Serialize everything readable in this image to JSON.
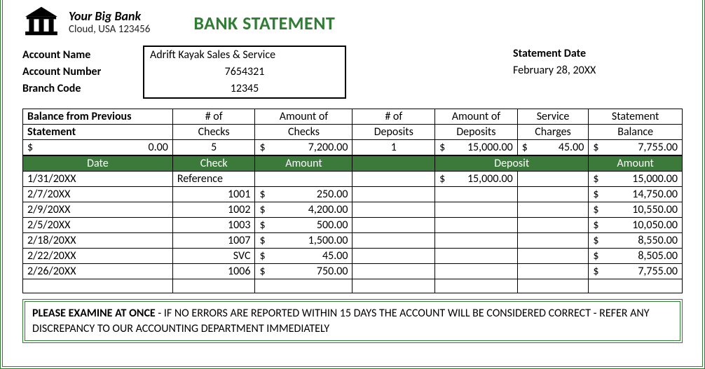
{
  "bank": {
    "name": "Your Big Bank",
    "location": "Cloud, USA 123456"
  },
  "title": "BANK STATEMENT",
  "account": {
    "name_label": "Account Name",
    "number_label": "Account Number",
    "branch_label": "Branch Code",
    "name": "Adrift Kayak Sales & Service",
    "number": "7654321",
    "branch": "12345",
    "stmt_date_label": "Statement Date",
    "stmt_date": "February 28, 20XX"
  },
  "summary": {
    "headers": {
      "bfps_l1": "Balance from Previous",
      "bfps_l2": "Statement",
      "nchecks_l1": "# of",
      "nchecks_l2": "Checks",
      "amtchk_l1": "Amount of",
      "amtchk_l2": "Checks",
      "ndep_l1": "# of",
      "ndep_l2": "Deposits",
      "amtdep_l1": "Amount of",
      "amtdep_l2": "Deposits",
      "svc_l1": "Service",
      "svc_l2": "Charges",
      "bal_l1": "Statement",
      "bal_l2": "Balance"
    },
    "values": {
      "bfps_cur": "$",
      "bfps": "0.00",
      "nchecks": "5",
      "amtchk_cur": "$",
      "amtchk": "7,200.00",
      "ndep": "1",
      "amtdep_cur": "$",
      "amtdep": "15,000.00",
      "svc_cur": "$",
      "svc": "45.00",
      "bal_cur": "$",
      "bal": "7,755.00"
    }
  },
  "txn": {
    "headers": {
      "date": "Date",
      "check": "Check",
      "amount": "Amount",
      "deposit": "Deposit",
      "balance": "Amount"
    },
    "rows": [
      {
        "date": "1/31/20XX",
        "check": "Reference",
        "check_align": "left",
        "amt_cur": "",
        "amt": "",
        "dep_cur": "$",
        "dep": "15,000.00",
        "bal_cur": "$",
        "bal": "15,000.00"
      },
      {
        "date": "2/7/20XX",
        "check": "1001",
        "check_align": "right",
        "amt_cur": "$",
        "amt": "250.00",
        "dep_cur": "",
        "dep": "",
        "bal_cur": "$",
        "bal": "14,750.00"
      },
      {
        "date": "2/9/20XX",
        "check": "1002",
        "check_align": "right",
        "amt_cur": "$",
        "amt": "4,200.00",
        "dep_cur": "",
        "dep": "",
        "bal_cur": "$",
        "bal": "10,550.00"
      },
      {
        "date": "2/5/20XX",
        "check": "1003",
        "check_align": "right",
        "amt_cur": "$",
        "amt": "500.00",
        "dep_cur": "",
        "dep": "",
        "bal_cur": "$",
        "bal": "10,050.00"
      },
      {
        "date": "2/18/20XX",
        "check": "1007",
        "check_align": "right",
        "amt_cur": "$",
        "amt": "1,500.00",
        "dep_cur": "",
        "dep": "",
        "bal_cur": "$",
        "bal": "8,550.00"
      },
      {
        "date": "2/22/20XX",
        "check": "SVC",
        "check_align": "right",
        "amt_cur": "$",
        "amt": "45.00",
        "dep_cur": "",
        "dep": "",
        "bal_cur": "$",
        "bal": "8,505.00"
      },
      {
        "date": "2/26/20XX",
        "check": "1006",
        "check_align": "right",
        "amt_cur": "$",
        "amt": "750.00",
        "dep_cur": "",
        "dep": "",
        "bal_cur": "$",
        "bal": "7,755.00"
      }
    ]
  },
  "notice": {
    "bold": "PLEASE EXAMINE AT ONCE",
    "rest": " - IF NO ERRORS ARE REPORTED WITHIN 15 DAYS THE ACCOUNT WILL BE CONSIDERED CORRECT - REFER ANY DISCREPANCY TO OUR ACCOUNTING DEPARTMENT IMMEDIATELY"
  },
  "colors": {
    "accent_green": "#2e7d32",
    "header_green": "#3b7a3b",
    "border_black": "#000000",
    "text_black": "#000000",
    "background": "#ffffff"
  }
}
